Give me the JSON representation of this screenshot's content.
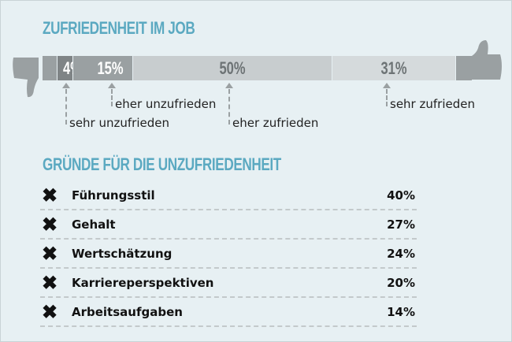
{
  "title": "ZUFRIEDENHEIT IM JOB",
  "chart_data": {
    "type": "bar",
    "title": "ZUFRIEDENHEIT IM JOB",
    "categories": [
      "sehr unzufrieden",
      "eher unzufrieden",
      "eher zufrieden",
      "sehr zufrieden"
    ],
    "values": [
      4,
      15,
      50,
      31
    ],
    "labels": [
      "4%",
      "15%",
      "50%",
      "31%"
    ],
    "colors": [
      "#7f8486",
      "#9aa0a2",
      "#c8cdcf",
      "#d5dadc"
    ]
  },
  "reasons": {
    "title": "GRÜNDE FÜR DIE UNZUFRIEDENHEIT",
    "icon": "x-icon",
    "items": [
      {
        "mark": "✖",
        "label": "Führungsstil",
        "value": "40%"
      },
      {
        "mark": "✖",
        "label": "Gehalt",
        "value": "27%"
      },
      {
        "mark": "✖",
        "label": "Wertschätzung",
        "value": "24%"
      },
      {
        "mark": "✖",
        "label": "Karriereperspektiven",
        "value": "20%"
      },
      {
        "mark": "✖",
        "label": "Arbeitsaufgaben",
        "value": "14%"
      }
    ]
  }
}
